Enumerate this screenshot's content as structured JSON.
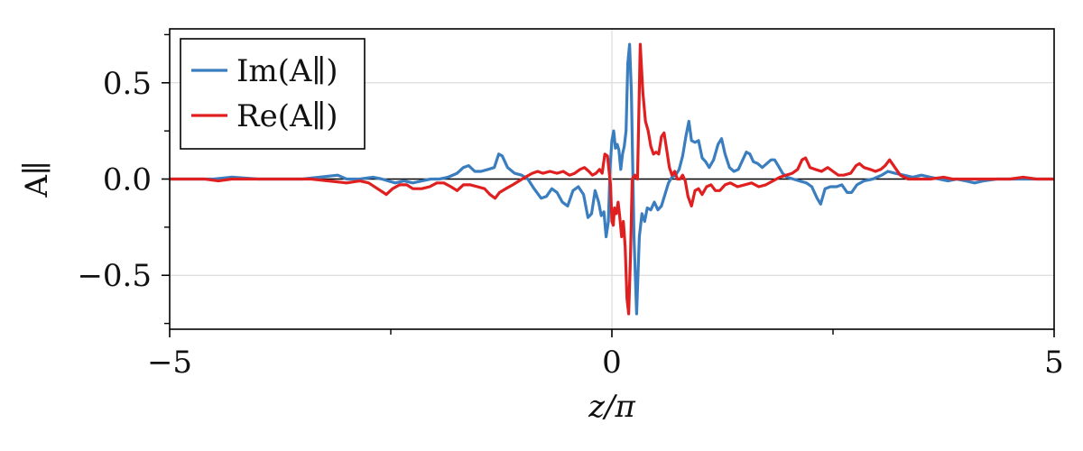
{
  "chart_data": {
    "type": "line",
    "title": "",
    "xlabel": "z/π",
    "ylabel": "A∥",
    "xlim": [
      -5,
      5
    ],
    "ylim": [
      -0.78,
      0.78
    ],
    "x_ticks": [
      -5,
      0,
      5
    ],
    "x_tick_labels": [
      "−5",
      "0",
      "5"
    ],
    "x_minor_ticks": [
      -2.5,
      2.5
    ],
    "y_ticks": [
      -0.5,
      0.0,
      0.5
    ],
    "y_tick_labels": [
      "−0.5",
      "0.0",
      "0.5"
    ],
    "y_minor_ticks": [
      -0.75,
      -0.25,
      0.25,
      0.75
    ],
    "grid": "horizontal",
    "zero_line": true,
    "legend_position": "top-left",
    "series": [
      {
        "name": "Im(A∥)",
        "color": "#3a7ebf",
        "points": [
          [
            -5.0,
            0.0
          ],
          [
            -4.5,
            0.0
          ],
          [
            -4.3,
            0.01
          ],
          [
            -4.0,
            0.0
          ],
          [
            -3.8,
            0.0
          ],
          [
            -3.5,
            0.0
          ],
          [
            -3.3,
            0.01
          ],
          [
            -3.1,
            0.02
          ],
          [
            -3.0,
            0.0
          ],
          [
            -2.85,
            0.0
          ],
          [
            -2.7,
            0.01
          ],
          [
            -2.6,
            0.0
          ],
          [
            -2.45,
            -0.02
          ],
          [
            -2.35,
            -0.01
          ],
          [
            -2.25,
            -0.02
          ],
          [
            -2.15,
            -0.01
          ],
          [
            -2.05,
            0.0
          ],
          [
            -1.95,
            0.0
          ],
          [
            -1.85,
            0.01
          ],
          [
            -1.75,
            0.03
          ],
          [
            -1.68,
            0.06
          ],
          [
            -1.62,
            0.07
          ],
          [
            -1.55,
            0.04
          ],
          [
            -1.48,
            0.04
          ],
          [
            -1.4,
            0.05
          ],
          [
            -1.33,
            0.06
          ],
          [
            -1.28,
            0.13
          ],
          [
            -1.24,
            0.12
          ],
          [
            -1.18,
            0.06
          ],
          [
            -1.1,
            0.03
          ],
          [
            -1.02,
            0.02
          ],
          [
            -0.95,
            0.0
          ],
          [
            -0.88,
            -0.05
          ],
          [
            -0.8,
            -0.1
          ],
          [
            -0.74,
            -0.09
          ],
          [
            -0.68,
            -0.05
          ],
          [
            -0.62,
            -0.07
          ],
          [
            -0.56,
            -0.12
          ],
          [
            -0.5,
            -0.14
          ],
          [
            -0.44,
            -0.06
          ],
          [
            -0.38,
            -0.04
          ],
          [
            -0.32,
            -0.08
          ],
          [
            -0.27,
            -0.2
          ],
          [
            -0.23,
            -0.18
          ],
          [
            -0.19,
            -0.06
          ],
          [
            -0.15,
            -0.12
          ],
          [
            -0.12,
            -0.19
          ],
          [
            -0.09,
            -0.17
          ],
          [
            -0.065,
            -0.3
          ],
          [
            -0.04,
            -0.22
          ],
          [
            -0.02,
            0.06
          ],
          [
            0.0,
            0.2
          ],
          [
            0.02,
            0.25
          ],
          [
            0.04,
            0.16
          ],
          [
            0.06,
            0.18
          ],
          [
            0.08,
            0.15
          ],
          [
            0.1,
            0.05
          ],
          [
            0.12,
            0.13
          ],
          [
            0.14,
            0.17
          ],
          [
            0.16,
            0.25
          ],
          [
            0.18,
            0.6
          ],
          [
            0.2,
            0.7
          ],
          [
            0.22,
            0.45
          ],
          [
            0.25,
            -0.3
          ],
          [
            0.28,
            -0.7
          ],
          [
            0.31,
            -0.3
          ],
          [
            0.34,
            -0.18
          ],
          [
            0.37,
            -0.22
          ],
          [
            0.4,
            -0.15
          ],
          [
            0.44,
            -0.16
          ],
          [
            0.48,
            -0.12
          ],
          [
            0.52,
            -0.16
          ],
          [
            0.56,
            -0.14
          ],
          [
            0.6,
            -0.08
          ],
          [
            0.64,
            -0.02
          ],
          [
            0.68,
            0.01
          ],
          [
            0.72,
            0.02
          ],
          [
            0.76,
            0.05
          ],
          [
            0.8,
            0.12
          ],
          [
            0.84,
            0.23
          ],
          [
            0.87,
            0.3
          ],
          [
            0.9,
            0.2
          ],
          [
            0.94,
            0.19
          ],
          [
            0.98,
            0.2
          ],
          [
            1.02,
            0.11
          ],
          [
            1.06,
            0.09
          ],
          [
            1.1,
            0.06
          ],
          [
            1.15,
            0.1
          ],
          [
            1.2,
            0.18
          ],
          [
            1.24,
            0.21
          ],
          [
            1.28,
            0.13
          ],
          [
            1.33,
            0.06
          ],
          [
            1.38,
            0.04
          ],
          [
            1.43,
            0.05
          ],
          [
            1.48,
            0.1
          ],
          [
            1.52,
            0.14
          ],
          [
            1.56,
            0.13
          ],
          [
            1.6,
            0.09
          ],
          [
            1.65,
            0.08
          ],
          [
            1.7,
            0.06
          ],
          [
            1.75,
            0.08
          ],
          [
            1.8,
            0.1
          ],
          [
            1.84,
            0.1
          ],
          [
            1.88,
            0.07
          ],
          [
            1.93,
            0.03
          ],
          [
            1.98,
            0.01
          ],
          [
            2.05,
            0.0
          ],
          [
            2.12,
            -0.01
          ],
          [
            2.2,
            -0.02
          ],
          [
            2.26,
            -0.04
          ],
          [
            2.32,
            -0.1
          ],
          [
            2.36,
            -0.13
          ],
          [
            2.41,
            -0.05
          ],
          [
            2.47,
            -0.04
          ],
          [
            2.54,
            -0.04
          ],
          [
            2.6,
            -0.03
          ],
          [
            2.66,
            -0.07
          ],
          [
            2.71,
            -0.07
          ],
          [
            2.77,
            -0.03
          ],
          [
            2.85,
            -0.01
          ],
          [
            2.95,
            0.0
          ],
          [
            3.05,
            0.02
          ],
          [
            3.12,
            0.04
          ],
          [
            3.2,
            0.03
          ],
          [
            3.3,
            0.02
          ],
          [
            3.4,
            0.01
          ],
          [
            3.5,
            0.02
          ],
          [
            3.6,
            0.01
          ],
          [
            3.7,
            0.0
          ],
          [
            3.8,
            -0.01
          ],
          [
            3.9,
            0.0
          ],
          [
            4.0,
            -0.01
          ],
          [
            4.1,
            -0.02
          ],
          [
            4.2,
            -0.01
          ],
          [
            4.35,
            0.0
          ],
          [
            4.5,
            0.0
          ],
          [
            4.65,
            0.0
          ],
          [
            4.8,
            0.0
          ],
          [
            5.0,
            0.0
          ]
        ]
      },
      {
        "name": "Re(A∥)",
        "color": "#e02020",
        "points": [
          [
            -5.0,
            0.0
          ],
          [
            -4.6,
            0.0
          ],
          [
            -4.45,
            -0.01
          ],
          [
            -4.3,
            0.0
          ],
          [
            -4.0,
            0.0
          ],
          [
            -3.7,
            0.0
          ],
          [
            -3.4,
            0.0
          ],
          [
            -3.2,
            -0.01
          ],
          [
            -3.0,
            -0.02
          ],
          [
            -2.85,
            -0.01
          ],
          [
            -2.75,
            -0.02
          ],
          [
            -2.65,
            -0.05
          ],
          [
            -2.55,
            -0.08
          ],
          [
            -2.48,
            -0.05
          ],
          [
            -2.4,
            -0.03
          ],
          [
            -2.32,
            -0.03
          ],
          [
            -2.25,
            -0.05
          ],
          [
            -2.15,
            -0.05
          ],
          [
            -2.06,
            -0.04
          ],
          [
            -1.98,
            -0.02
          ],
          [
            -1.9,
            -0.02
          ],
          [
            -1.82,
            -0.04
          ],
          [
            -1.75,
            -0.06
          ],
          [
            -1.68,
            -0.03
          ],
          [
            -1.6,
            -0.03
          ],
          [
            -1.52,
            -0.04
          ],
          [
            -1.44,
            -0.05
          ],
          [
            -1.38,
            -0.08
          ],
          [
            -1.32,
            -0.1
          ],
          [
            -1.27,
            -0.07
          ],
          [
            -1.2,
            -0.05
          ],
          [
            -1.12,
            -0.03
          ],
          [
            -1.05,
            -0.01
          ],
          [
            -0.98,
            0.01
          ],
          [
            -0.9,
            0.03
          ],
          [
            -0.84,
            0.04
          ],
          [
            -0.78,
            0.03
          ],
          [
            -0.7,
            0.04
          ],
          [
            -0.62,
            0.03
          ],
          [
            -0.55,
            0.04
          ],
          [
            -0.48,
            0.02
          ],
          [
            -0.42,
            0.03
          ],
          [
            -0.36,
            0.05
          ],
          [
            -0.31,
            0.06
          ],
          [
            -0.26,
            0.04
          ],
          [
            -0.22,
            0.02
          ],
          [
            -0.18,
            0.03
          ],
          [
            -0.14,
            0.05
          ],
          [
            -0.11,
            0.03
          ],
          [
            -0.08,
            0.13
          ],
          [
            -0.05,
            0.12
          ],
          [
            -0.03,
            0.03
          ],
          [
            -0.015,
            -0.03
          ],
          [
            0.0,
            -0.22
          ],
          [
            0.015,
            -0.24
          ],
          [
            0.03,
            -0.15
          ],
          [
            0.05,
            -0.18
          ],
          [
            0.07,
            -0.12
          ],
          [
            0.09,
            -0.2
          ],
          [
            0.11,
            -0.3
          ],
          [
            0.13,
            -0.22
          ],
          [
            0.15,
            -0.35
          ],
          [
            0.17,
            -0.62
          ],
          [
            0.19,
            -0.7
          ],
          [
            0.21,
            -0.4
          ],
          [
            0.23,
            0.0
          ],
          [
            0.26,
            0.02
          ],
          [
            0.29,
            0.0
          ],
          [
            0.32,
            0.7
          ],
          [
            0.35,
            0.45
          ],
          [
            0.38,
            0.3
          ],
          [
            0.41,
            0.25
          ],
          [
            0.44,
            0.17
          ],
          [
            0.47,
            0.13
          ],
          [
            0.5,
            0.14
          ],
          [
            0.53,
            0.13
          ],
          [
            0.56,
            0.22
          ],
          [
            0.59,
            0.24
          ],
          [
            0.62,
            0.15
          ],
          [
            0.65,
            0.06
          ],
          [
            0.68,
            0.02
          ],
          [
            0.71,
            0.04
          ],
          [
            0.74,
            0.0
          ],
          [
            0.77,
            0.0
          ],
          [
            0.8,
            0.02
          ],
          [
            0.83,
            -0.01
          ],
          [
            0.86,
            -0.09
          ],
          [
            0.9,
            -0.14
          ],
          [
            0.94,
            -0.06
          ],
          [
            0.98,
            -0.05
          ],
          [
            1.02,
            -0.08
          ],
          [
            1.07,
            -0.04
          ],
          [
            1.12,
            -0.03
          ],
          [
            1.17,
            -0.06
          ],
          [
            1.22,
            -0.06
          ],
          [
            1.28,
            -0.03
          ],
          [
            1.34,
            -0.02
          ],
          [
            1.42,
            -0.04
          ],
          [
            1.5,
            -0.03
          ],
          [
            1.58,
            -0.02
          ],
          [
            1.66,
            -0.04
          ],
          [
            1.74,
            -0.03
          ],
          [
            1.82,
            -0.01
          ],
          [
            1.9,
            0.01
          ],
          [
            1.97,
            0.02
          ],
          [
            2.04,
            0.03
          ],
          [
            2.1,
            0.05
          ],
          [
            2.15,
            0.1
          ],
          [
            2.19,
            0.11
          ],
          [
            2.24,
            0.06
          ],
          [
            2.3,
            0.05
          ],
          [
            2.37,
            0.04
          ],
          [
            2.44,
            0.06
          ],
          [
            2.5,
            0.04
          ],
          [
            2.56,
            0.02
          ],
          [
            2.62,
            0.02
          ],
          [
            2.7,
            0.03
          ],
          [
            2.76,
            0.07
          ],
          [
            2.8,
            0.08
          ],
          [
            2.85,
            0.06
          ],
          [
            2.92,
            0.05
          ],
          [
            2.98,
            0.04
          ],
          [
            3.04,
            0.05
          ],
          [
            3.09,
            0.07
          ],
          [
            3.14,
            0.1
          ],
          [
            3.2,
            0.06
          ],
          [
            3.26,
            0.02
          ],
          [
            3.35,
            0.0
          ],
          [
            3.45,
            0.0
          ],
          [
            3.6,
            0.0
          ],
          [
            3.75,
            0.01
          ],
          [
            3.85,
            0.0
          ],
          [
            3.95,
            0.0
          ],
          [
            4.1,
            0.0
          ],
          [
            4.3,
            0.0
          ],
          [
            4.5,
            0.0
          ],
          [
            4.65,
            0.01
          ],
          [
            4.8,
            0.0
          ],
          [
            5.0,
            0.0
          ]
        ]
      }
    ]
  }
}
